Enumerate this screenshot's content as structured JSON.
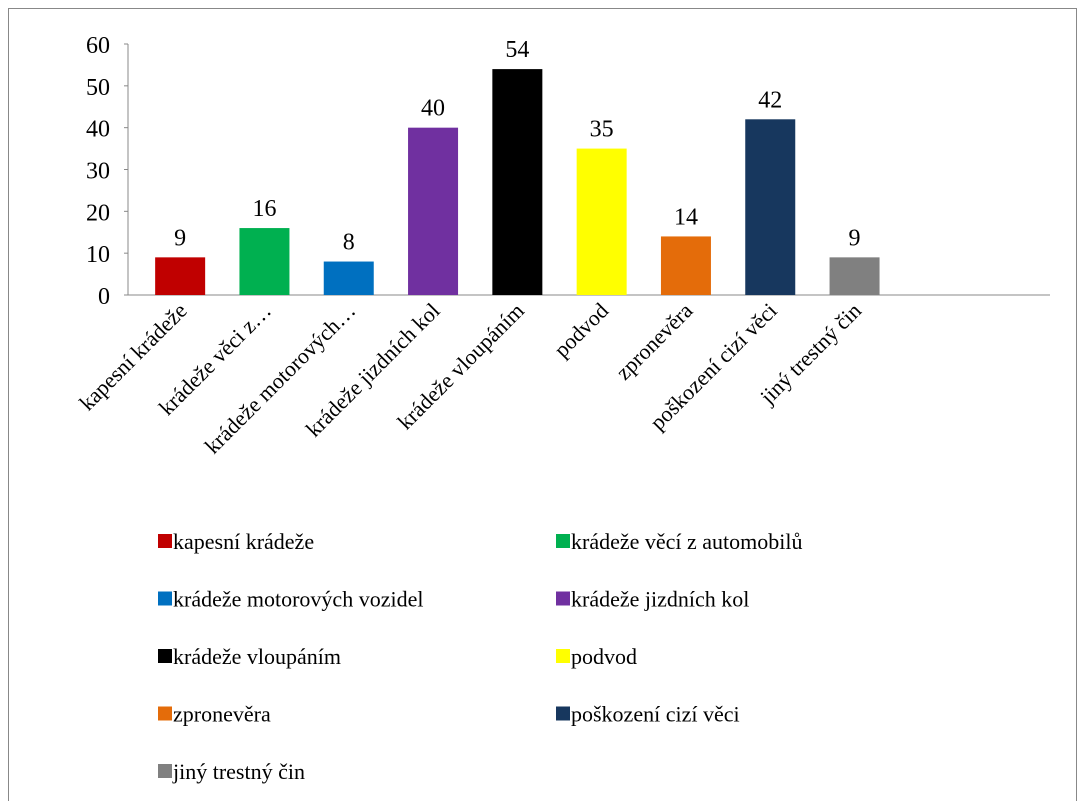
{
  "chart_data": {
    "type": "bar",
    "categories": [
      "kapesní krádeže",
      "krádeže věci z…",
      "krádeže motorových…",
      "krádeže jizdních kol",
      "krádeže vloupáním",
      "podvod",
      "zpronevěra",
      "poškození cizí věci",
      "jiný trestný čin"
    ],
    "values": [
      9,
      16,
      8,
      40,
      54,
      35,
      14,
      42,
      9
    ],
    "colors": [
      "#c00000",
      "#00b050",
      "#0070c0",
      "#7030a0",
      "#000000",
      "#ffff00",
      "#e46c0a",
      "#17375e",
      "#808080"
    ],
    "legend": [
      "kapesní krádeže",
      "krádeže věcí z automobilů",
      "krádeže motorových vozidel",
      "krádeže jizdních kol",
      "krádeže vloupáním",
      "podvod",
      "zpronevěra",
      "poškození cizí věci",
      "jiný trestný čin"
    ],
    "ylim": [
      0,
      60
    ],
    "yticks": [
      0,
      10,
      20,
      30,
      40,
      50,
      60
    ],
    "grid": false
  }
}
